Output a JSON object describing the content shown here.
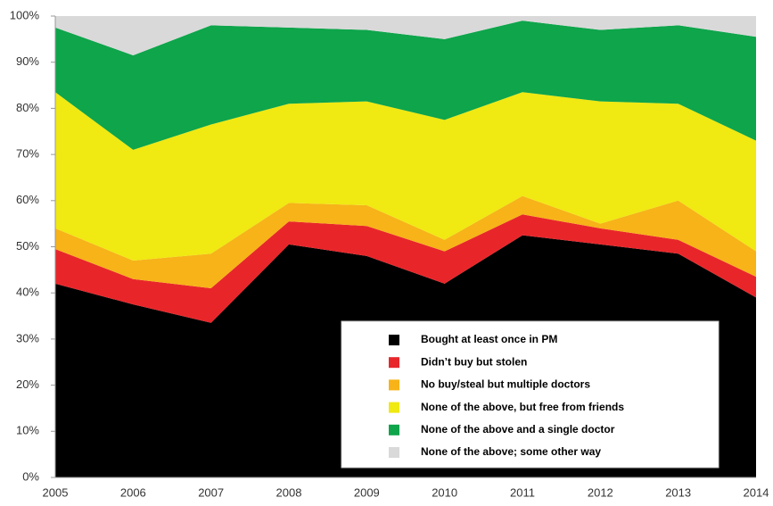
{
  "chart_data": {
    "type": "stacked_area",
    "categories": [
      "2005",
      "2006",
      "2007",
      "2008",
      "2009",
      "2010",
      "2011",
      "2012",
      "2013",
      "2014"
    ],
    "series": [
      {
        "name": "Bought at least once in PM",
        "color": "#000000",
        "values": [
          42,
          37.5,
          33.5,
          50.5,
          48,
          42,
          52.5,
          50.5,
          48.5,
          39
        ]
      },
      {
        "name": "Didn’t buy but stolen",
        "color": "#e8262a",
        "values": [
          7.5,
          5.5,
          7.5,
          5,
          6.5,
          7,
          4.5,
          3.5,
          3,
          4.5
        ]
      },
      {
        "name": "No buy/steal but multiple doctors",
        "color": "#f7b318",
        "values": [
          4.5,
          4,
          7.5,
          4,
          4.5,
          2.5,
          4,
          1,
          8.5,
          5.5
        ]
      },
      {
        "name": "None of the above, but free from friends",
        "color": "#f0e912",
        "values": [
          29.5,
          24,
          28,
          21.5,
          22.5,
          26,
          22.5,
          26.5,
          21,
          24
        ]
      },
      {
        "name": "None of the above and a single doctor",
        "color": "#0ea54b",
        "values": [
          14,
          20.5,
          21.5,
          16.5,
          15.5,
          17.5,
          15.5,
          15.5,
          17,
          22.5
        ]
      },
      {
        "name": "None of the above; some other way",
        "color": "#d9d9d9",
        "values": [
          2.5,
          8.5,
          2,
          2.5,
          3,
          5,
          1,
          3,
          2,
          4.5
        ]
      }
    ],
    "ylim": [
      0,
      100
    ],
    "yticks": [
      {
        "value": 0,
        "label": "0%"
      },
      {
        "value": 10,
        "label": "10%"
      },
      {
        "value": 20,
        "label": "20%"
      },
      {
        "value": 30,
        "label": "30%"
      },
      {
        "value": 40,
        "label": "40%"
      },
      {
        "value": 50,
        "label": "50%"
      },
      {
        "value": 60,
        "label": "60%"
      },
      {
        "value": 70,
        "label": "70%"
      },
      {
        "value": 80,
        "label": "80%"
      },
      {
        "value": 90,
        "label": "90%"
      },
      {
        "value": 100,
        "label": "100%"
      }
    ],
    "legend": "lower right"
  }
}
